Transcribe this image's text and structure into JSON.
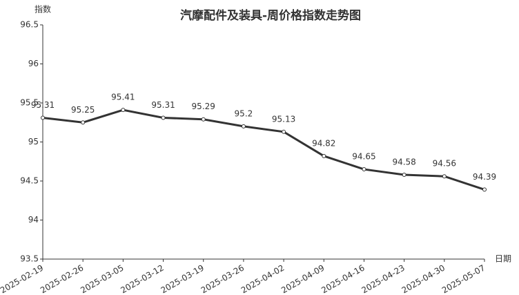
{
  "chart_data": {
    "type": "line",
    "title": "汽摩配件及装具-周价格指数走势图",
    "y_label": "指数",
    "x_label": "日期",
    "categories": [
      "2025-02-19",
      "2025-02-26",
      "2025-03-05",
      "2025-03-12",
      "2025-03-19",
      "2025-03-26",
      "2025-04-02",
      "2025-04-09",
      "2025-04-16",
      "2025-04-23",
      "2025-04-30",
      "2025-05-07"
    ],
    "values": [
      95.31,
      95.25,
      95.41,
      95.31,
      95.29,
      95.2,
      95.13,
      94.82,
      94.65,
      94.58,
      94.56,
      94.39
    ],
    "color": "#333333",
    "ylim": [
      93.5,
      96.5
    ],
    "yticks": [
      93.5,
      94,
      94.5,
      95,
      95.5,
      96,
      96.5
    ],
    "grid": false
  }
}
